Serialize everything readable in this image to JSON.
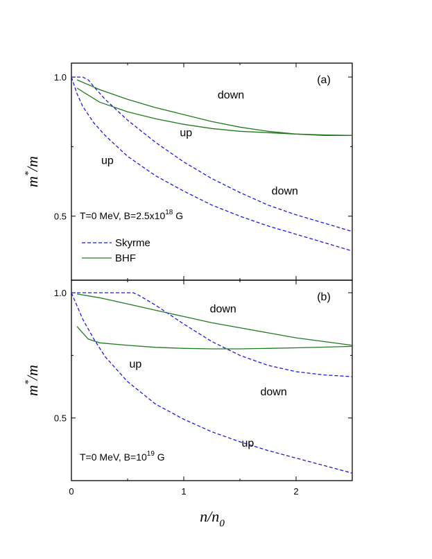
{
  "chart_data": [
    {
      "type": "line",
      "panel_label": "(a)",
      "xlabel_main": "n/n",
      "xlabel_sub": "0",
      "ylabel_main": "m",
      "ylabel_sup": "*",
      "ylabel_tail": "/m",
      "xlim": [
        0,
        2.5
      ],
      "ylim": [
        0.27,
        1.05
      ],
      "yticks": [
        0.5,
        1.0
      ],
      "ytick_labels": [
        "0.5",
        "1.0"
      ],
      "xticks": [
        0,
        1,
        2
      ],
      "xtick_labels": [
        "0",
        "1",
        "2"
      ],
      "condition_text": "T=0 MeV, B=2.5x10",
      "condition_sup": "18",
      "condition_tail": " G",
      "legend": [
        {
          "label": "Skyrme",
          "style": "dashed",
          "color": "#1a1adf"
        },
        {
          "label": "BHF",
          "style": "solid",
          "color": "#1f7a1f"
        }
      ],
      "series": [
        {
          "model": "Skyrme",
          "spin": "down",
          "color": "#1a1adf",
          "dash": true,
          "x": [
            0,
            0.1,
            0.15,
            0.2,
            0.3,
            0.5,
            0.75,
            1.0,
            1.25,
            1.5,
            1.75,
            2.0,
            2.25,
            2.5
          ],
          "y": [
            1.0,
            1.0,
            0.99,
            0.965,
            0.92,
            0.845,
            0.765,
            0.695,
            0.635,
            0.585,
            0.54,
            0.505,
            0.475,
            0.445
          ]
        },
        {
          "model": "Skyrme",
          "spin": "up",
          "color": "#1a1adf",
          "dash": true,
          "x": [
            0,
            0.05,
            0.1,
            0.2,
            0.3,
            0.5,
            0.75,
            1.0,
            1.25,
            1.5,
            1.75,
            2.0,
            2.25,
            2.5
          ],
          "y": [
            1.0,
            0.94,
            0.895,
            0.835,
            0.79,
            0.715,
            0.645,
            0.59,
            0.54,
            0.5,
            0.465,
            0.435,
            0.405,
            0.375
          ]
        },
        {
          "model": "BHF",
          "spin": "down",
          "color": "#1f7a1f",
          "dash": false,
          "x": [
            0.05,
            0.25,
            0.5,
            0.75,
            1.0,
            1.25,
            1.5,
            1.75,
            2.0,
            2.25,
            2.5
          ],
          "y": [
            0.99,
            0.955,
            0.92,
            0.89,
            0.865,
            0.84,
            0.82,
            0.805,
            0.795,
            0.79,
            0.79
          ]
        },
        {
          "model": "BHF",
          "spin": "up",
          "color": "#1f7a1f",
          "dash": false,
          "x": [
            0.05,
            0.25,
            0.5,
            0.75,
            1.0,
            1.25,
            1.5,
            1.75,
            2.0,
            2.25,
            2.5
          ],
          "y": [
            0.96,
            0.91,
            0.875,
            0.85,
            0.83,
            0.815,
            0.805,
            0.8,
            0.795,
            0.792,
            0.79
          ]
        }
      ],
      "annotations": [
        {
          "text": "down",
          "x": 1.42,
          "y": 0.935
        },
        {
          "text": "up",
          "x": 1.02,
          "y": 0.8
        },
        {
          "text": "up",
          "x": 0.32,
          "y": 0.7
        },
        {
          "text": "down",
          "x": 1.9,
          "y": 0.59
        }
      ]
    },
    {
      "type": "line",
      "panel_label": "(b)",
      "xlim": [
        0,
        2.5
      ],
      "ylim": [
        0.25,
        1.05
      ],
      "yticks": [
        0.5,
        1.0
      ],
      "ytick_labels": [
        "0.5",
        "1.0"
      ],
      "xticks": [
        0,
        1,
        2
      ],
      "xtick_labels": [
        "0",
        "1",
        "2"
      ],
      "condition_text": "T=0 MeV, B=10",
      "condition_sup": "19",
      "condition_tail": " G",
      "series": [
        {
          "model": "Skyrme",
          "spin": "down",
          "color": "#1a1adf",
          "dash": true,
          "x": [
            0,
            0.2,
            0.4,
            0.55,
            0.6,
            0.75,
            1.0,
            1.25,
            1.5,
            1.75,
            2.0,
            2.25,
            2.5
          ],
          "y": [
            1.0,
            1.0,
            1.0,
            1.0,
            0.99,
            0.95,
            0.875,
            0.805,
            0.75,
            0.71,
            0.685,
            0.672,
            0.665
          ]
        },
        {
          "model": "Skyrme",
          "spin": "up",
          "color": "#1a1adf",
          "dash": true,
          "x": [
            0,
            0.1,
            0.2,
            0.3,
            0.5,
            0.75,
            1.0,
            1.25,
            1.5,
            1.75,
            2.0,
            2.25,
            2.5
          ],
          "y": [
            1.0,
            0.895,
            0.815,
            0.745,
            0.645,
            0.555,
            0.495,
            0.445,
            0.405,
            0.37,
            0.34,
            0.31,
            0.28
          ]
        },
        {
          "model": "BHF",
          "spin": "down",
          "color": "#1f7a1f",
          "dash": false,
          "x": [
            0.05,
            0.25,
            0.5,
            0.75,
            1.0,
            1.25,
            1.5,
            1.75,
            2.0,
            2.25,
            2.5
          ],
          "y": [
            0.995,
            0.98,
            0.955,
            0.93,
            0.905,
            0.88,
            0.86,
            0.84,
            0.82,
            0.805,
            0.79
          ]
        },
        {
          "model": "BHF",
          "spin": "up",
          "color": "#1f7a1f",
          "dash": false,
          "x": [
            0.05,
            0.15,
            0.25,
            0.5,
            0.75,
            1.0,
            1.25,
            1.5,
            1.75,
            2.0,
            2.25,
            2.5
          ],
          "y": [
            0.865,
            0.815,
            0.8,
            0.79,
            0.782,
            0.778,
            0.776,
            0.776,
            0.778,
            0.78,
            0.783,
            0.786
          ]
        }
      ],
      "annotations": [
        {
          "text": "down",
          "x": 1.35,
          "y": 0.935
        },
        {
          "text": "up",
          "x": 0.57,
          "y": 0.715
        },
        {
          "text": "down",
          "x": 1.8,
          "y": 0.605
        },
        {
          "text": "up",
          "x": 1.57,
          "y": 0.4
        }
      ]
    }
  ]
}
